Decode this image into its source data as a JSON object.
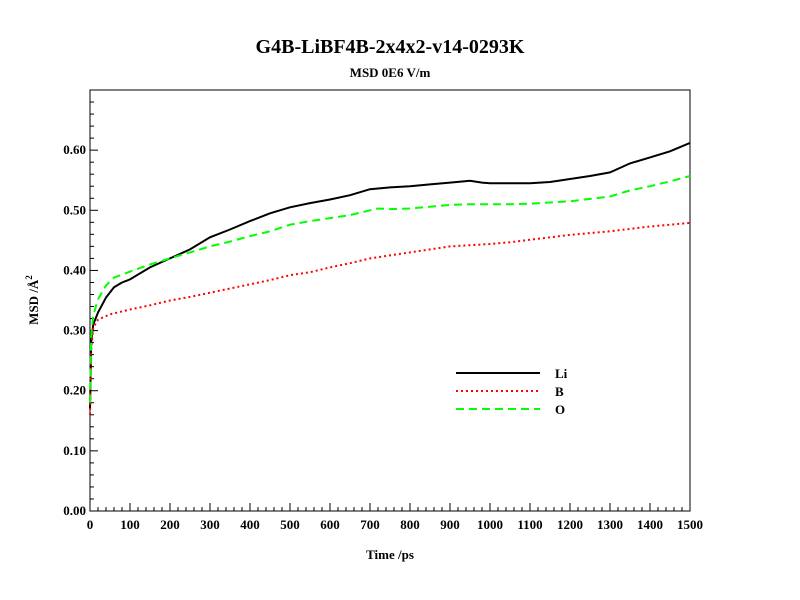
{
  "chart_data": {
    "type": "line",
    "title": "G4B-LiBF4B-2x4x2-v14-0293K",
    "subtitle": "MSD  0E6 V/m",
    "xlabel": "Time /ps",
    "ylabel_text": "MSD /Å",
    "ylabel_sup": "2",
    "xlim": [
      0,
      1500
    ],
    "ylim": [
      0,
      0.7
    ],
    "x_ticks": [
      0,
      100,
      200,
      300,
      400,
      500,
      600,
      700,
      800,
      900,
      1000,
      1100,
      1200,
      1300,
      1400,
      1500
    ],
    "x_tick_labels": [
      "0",
      "100",
      "200",
      "300",
      "400",
      "500",
      "600",
      "700",
      "800",
      "900",
      "1000",
      "1100",
      "1200",
      "1300",
      "1400",
      "1500"
    ],
    "y_ticks": [
      0,
      0.1,
      0.2,
      0.3,
      0.4,
      0.5,
      0.6
    ],
    "y_tick_labels": [
      "0.00",
      "0.10",
      "0.20",
      "0.30",
      "0.40",
      "0.50",
      "0.60"
    ],
    "grid": false,
    "legend_position": "right-middle",
    "series": [
      {
        "name": "Li",
        "color": "#000000",
        "style": "solid",
        "points": [
          [
            0,
            0.17
          ],
          [
            3,
            0.28
          ],
          [
            8,
            0.31
          ],
          [
            20,
            0.33
          ],
          [
            40,
            0.355
          ],
          [
            60,
            0.372
          ],
          [
            80,
            0.38
          ],
          [
            100,
            0.385
          ],
          [
            150,
            0.405
          ],
          [
            200,
            0.42
          ],
          [
            250,
            0.435
          ],
          [
            300,
            0.455
          ],
          [
            350,
            0.468
          ],
          [
            400,
            0.482
          ],
          [
            450,
            0.495
          ],
          [
            500,
            0.505
          ],
          [
            550,
            0.512
          ],
          [
            600,
            0.518
          ],
          [
            650,
            0.525
          ],
          [
            700,
            0.535
          ],
          [
            750,
            0.538
          ],
          [
            800,
            0.54
          ],
          [
            850,
            0.543
          ],
          [
            900,
            0.546
          ],
          [
            950,
            0.549
          ],
          [
            980,
            0.546
          ],
          [
            1000,
            0.545
          ],
          [
            1050,
            0.545
          ],
          [
            1100,
            0.545
          ],
          [
            1150,
            0.547
          ],
          [
            1200,
            0.552
          ],
          [
            1250,
            0.557
          ],
          [
            1300,
            0.563
          ],
          [
            1330,
            0.572
          ],
          [
            1350,
            0.578
          ],
          [
            1400,
            0.588
          ],
          [
            1450,
            0.598
          ],
          [
            1500,
            0.612
          ]
        ]
      },
      {
        "name": "B",
        "color": "#ff0000",
        "style": "dotted",
        "points": [
          [
            0,
            0.16
          ],
          [
            3,
            0.27
          ],
          [
            8,
            0.305
          ],
          [
            20,
            0.318
          ],
          [
            50,
            0.327
          ],
          [
            100,
            0.335
          ],
          [
            150,
            0.342
          ],
          [
            200,
            0.35
          ],
          [
            250,
            0.356
          ],
          [
            300,
            0.363
          ],
          [
            350,
            0.37
          ],
          [
            400,
            0.377
          ],
          [
            450,
            0.384
          ],
          [
            500,
            0.392
          ],
          [
            550,
            0.397
          ],
          [
            600,
            0.405
          ],
          [
            650,
            0.412
          ],
          [
            700,
            0.42
          ],
          [
            750,
            0.425
          ],
          [
            800,
            0.43
          ],
          [
            850,
            0.435
          ],
          [
            900,
            0.44
          ],
          [
            950,
            0.442
          ],
          [
            1000,
            0.444
          ],
          [
            1050,
            0.447
          ],
          [
            1100,
            0.451
          ],
          [
            1150,
            0.455
          ],
          [
            1200,
            0.459
          ],
          [
            1250,
            0.462
          ],
          [
            1300,
            0.465
          ],
          [
            1350,
            0.469
          ],
          [
            1400,
            0.473
          ],
          [
            1450,
            0.476
          ],
          [
            1500,
            0.479
          ]
        ]
      },
      {
        "name": "O",
        "color": "#00ff00",
        "style": "dashed",
        "points": [
          [
            0,
            0.18
          ],
          [
            3,
            0.29
          ],
          [
            8,
            0.325
          ],
          [
            20,
            0.352
          ],
          [
            40,
            0.375
          ],
          [
            60,
            0.388
          ],
          [
            80,
            0.393
          ],
          [
            100,
            0.398
          ],
          [
            150,
            0.41
          ],
          [
            200,
            0.42
          ],
          [
            250,
            0.43
          ],
          [
            300,
            0.44
          ],
          [
            350,
            0.448
          ],
          [
            400,
            0.457
          ],
          [
            450,
            0.465
          ],
          [
            500,
            0.476
          ],
          [
            550,
            0.482
          ],
          [
            600,
            0.487
          ],
          [
            650,
            0.492
          ],
          [
            700,
            0.5
          ],
          [
            720,
            0.503
          ],
          [
            750,
            0.502
          ],
          [
            800,
            0.503
          ],
          [
            850,
            0.506
          ],
          [
            900,
            0.509
          ],
          [
            950,
            0.51
          ],
          [
            1000,
            0.51
          ],
          [
            1050,
            0.51
          ],
          [
            1100,
            0.511
          ],
          [
            1150,
            0.513
          ],
          [
            1200,
            0.515
          ],
          [
            1250,
            0.519
          ],
          [
            1300,
            0.523
          ],
          [
            1350,
            0.533
          ],
          [
            1400,
            0.54
          ],
          [
            1450,
            0.548
          ],
          [
            1500,
            0.557
          ]
        ]
      }
    ]
  }
}
